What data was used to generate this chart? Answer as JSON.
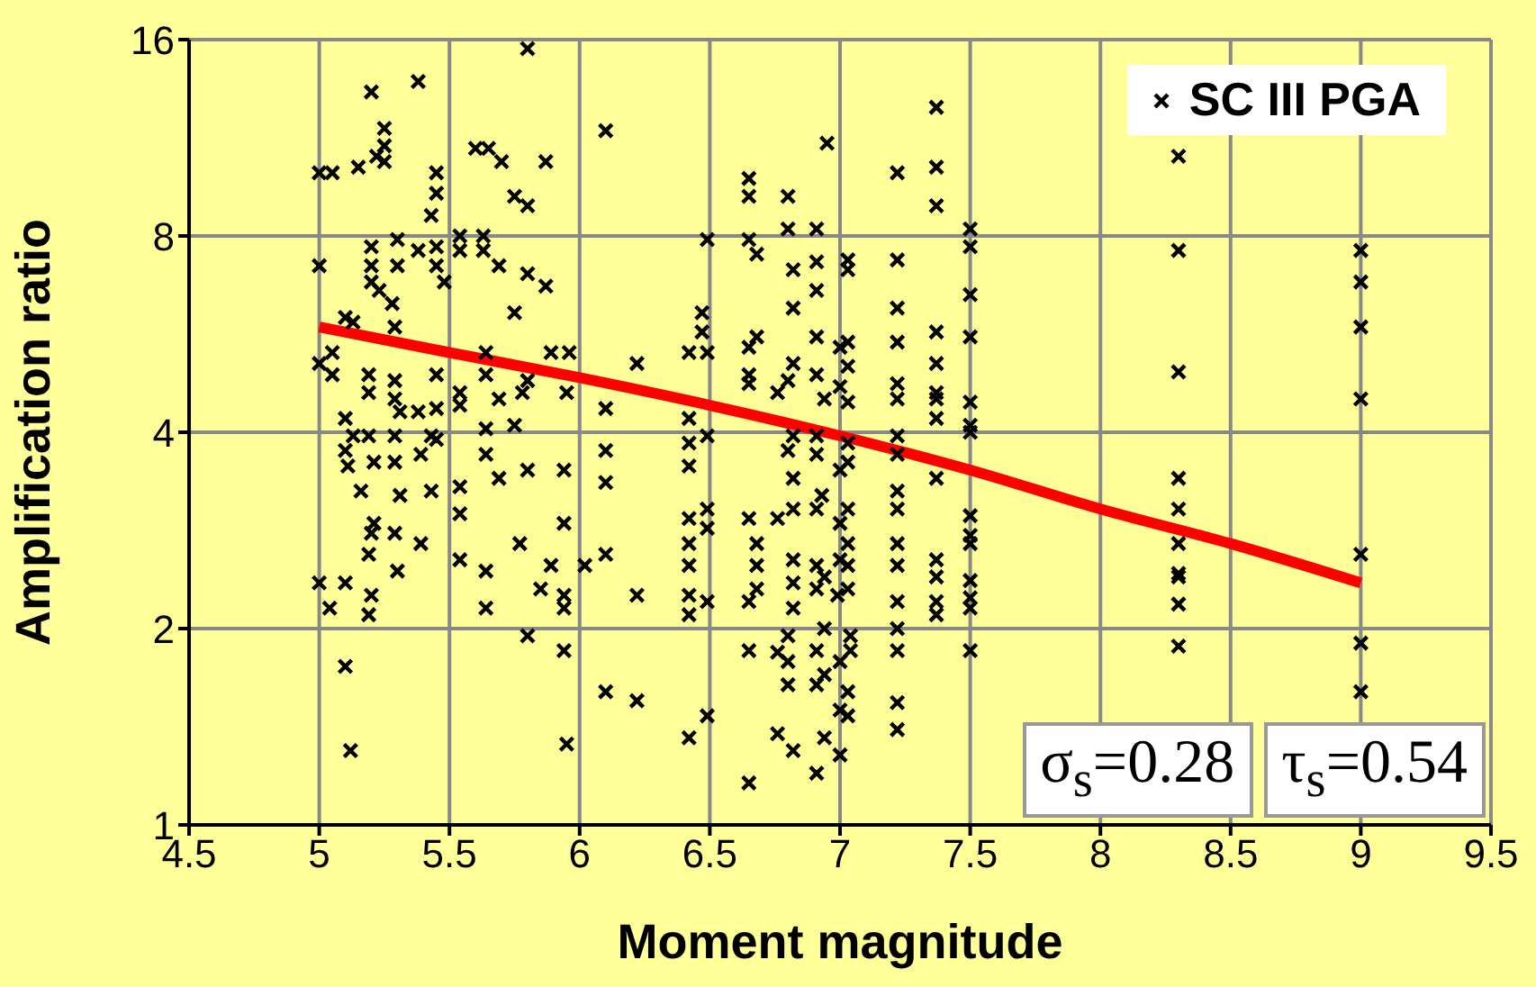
{
  "chart_data": {
    "type": "scatter",
    "xlabel": "Moment magnitude",
    "ylabel": "Amplification ratio",
    "xlim": [
      4.5,
      9.5
    ],
    "xticks": [
      4.5,
      5,
      5.5,
      6,
      6.5,
      7,
      7.5,
      8,
      8.5,
      9,
      9.5
    ],
    "ylim": [
      1,
      16
    ],
    "yticks": [
      1,
      2,
      4,
      8,
      16
    ],
    "log": "y",
    "grid": true,
    "legend": "top right",
    "annotations": [
      "σ$_{s}$=0.28",
      "τ$_{s}$=0.54"
    ],
    "series": [
      {
        "name": "SC III PGA",
        "marker": "cross",
        "color": "#000000",
        "x": [
          5.0,
          5.05,
          5.2,
          5.38,
          5.8,
          6.1,
          5.15,
          5.22,
          5.25,
          5.25,
          5.25,
          5.6,
          5.65,
          5.7,
          5.75,
          5.8,
          5.87,
          5.45,
          5.45,
          5.43,
          5.0,
          5.2,
          5.2,
          5.2,
          5.23,
          5.3,
          5.3,
          5.38,
          5.45,
          5.45,
          5.48,
          5.54,
          5.54,
          5.63,
          5.63,
          5.69,
          5.8,
          5.87,
          5.75,
          5.1,
          5.13,
          5.28,
          5.29,
          5,
          5.05,
          5.05,
          5.19,
          5.19,
          5.1,
          5.29,
          5.29,
          5.31,
          5.38,
          5.45,
          5.45,
          5.54,
          5.54,
          5.64,
          5.64,
          5.69,
          5.75,
          5.78,
          5.8,
          5.89,
          5.96,
          5.95,
          6.1,
          6.22,
          5.1,
          5.13,
          5.19,
          5.21,
          5.11,
          5.16,
          5.29,
          5.29,
          5.31,
          5.39,
          5.43,
          5.45,
          5.43,
          5.54,
          5.54,
          5.64,
          5.64,
          5.69,
          5.8,
          5.94,
          6.1,
          6.1,
          5.21,
          5.2,
          5.19,
          5.29,
          5.39,
          5.3,
          5.54,
          5.64,
          5.64,
          5.77,
          5.89,
          6.02,
          5.94,
          6.1,
          5,
          5.1,
          5.04,
          5.2,
          5.19,
          5.85,
          5.94,
          5.94,
          6.22,
          5.8,
          5.94,
          6.1,
          6.22,
          5.1,
          5.12,
          5.95,
          6.49,
          6.47,
          6.47,
          6.42,
          6.49,
          6.42,
          6.49,
          6.42,
          6.42,
          6.49,
          6.49,
          6.42,
          6.42,
          6.42,
          6.42,
          6.42,
          6.49,
          6.42,
          6.49,
          6.65,
          6.65,
          6.65,
          6.68,
          6.65,
          6.68,
          6.65,
          6.65,
          6.65,
          6.68,
          6.68,
          6.68,
          6.65,
          6.65,
          6.65,
          6.8,
          6.8,
          6.82,
          6.82,
          6.82,
          6.8,
          6.76,
          6.82,
          6.8,
          6.82,
          6.82,
          6.76,
          6.82,
          6.82,
          6.82,
          6.8,
          6.8,
          6.8,
          6.76,
          6.76,
          6.82,
          6.95,
          6.91,
          6.91,
          6.91,
          6.91,
          6.91,
          6.94,
          6.91,
          6.91,
          6.93,
          6.91,
          6.91,
          6.91,
          6.94,
          6.94,
          6.91,
          6.91,
          6.94,
          6.94,
          6.91,
          7.03,
          7.03,
          7,
          7.03,
          7.03,
          7,
          7.03,
          7.03,
          7.03,
          7,
          7.03,
          7,
          7.03,
          7.03,
          7,
          7.03,
          6.99,
          7.04,
          7.04,
          7,
          7.03,
          7.03,
          7,
          7,
          7.22,
          7.22,
          7.22,
          7.22,
          7.22,
          7.22,
          7.22,
          7.22,
          7.22,
          7.22,
          7.22,
          7.22,
          7.22,
          7.22,
          7.22,
          7.22,
          7.22,
          7.37,
          7.37,
          7.37,
          7.37,
          7.37,
          7.37,
          7.37,
          7.37,
          7.37,
          7.37,
          7.37,
          7.37,
          7.37,
          7.5,
          7.5,
          7.5,
          7.5,
          7.5,
          7.5,
          7.5,
          7.5,
          7.5,
          7.5,
          7.5,
          7.5,
          7.5,
          7.5,
          8.3,
          8.3,
          8.3,
          8.3,
          8.3,
          8.3,
          8.3,
          8.3,
          8.3,
          8.3,
          9,
          9,
          9,
          9,
          9,
          9,
          9
        ],
        "values": [
          10,
          10,
          13.3,
          13.8,
          15.5,
          11.6,
          10.2,
          10.6,
          11.7,
          11,
          10.4,
          10.9,
          10.9,
          10.4,
          9.2,
          8.9,
          10.4,
          10,
          9.3,
          8.6,
          7.2,
          7.7,
          7.2,
          6.8,
          6.6,
          7.9,
          7.2,
          7.6,
          7.7,
          7.2,
          6.8,
          8,
          7.6,
          8,
          7.6,
          7.2,
          7,
          6.7,
          6.1,
          6,
          5.9,
          6.3,
          5.8,
          5.1,
          5.3,
          4.9,
          4.9,
          4.6,
          4.2,
          4.8,
          4.5,
          4.3,
          4.3,
          4.9,
          4.35,
          4.6,
          4.4,
          5.3,
          4.9,
          4.5,
          4.1,
          4.6,
          4.8,
          5.3,
          5.3,
          4.6,
          4.35,
          5.1,
          3.75,
          3.95,
          3.95,
          3.6,
          3.55,
          3.25,
          3.95,
          3.6,
          3.2,
          3.7,
          3.95,
          3.9,
          3.25,
          3.3,
          3,
          4.05,
          3.7,
          3.4,
          3.5,
          3.5,
          3.75,
          3.35,
          2.9,
          2.8,
          2.6,
          2.8,
          2.7,
          2.45,
          2.55,
          2.45,
          2.15,
          2.7,
          2.5,
          2.5,
          2.9,
          2.6,
          2.35,
          2.35,
          2.15,
          2.25,
          2.1,
          2.3,
          2.25,
          2.15,
          2.25,
          1.95,
          1.85,
          1.6,
          1.55,
          1.75,
          1.3,
          1.33,
          7.9,
          6.1,
          5.7,
          5.3,
          5.3,
          4.2,
          3.95,
          3.85,
          3.55,
          3.05,
          2.85,
          2.95,
          2.7,
          2.5,
          2.25,
          2.1,
          2.2,
          1.36,
          1.47,
          9.8,
          9.2,
          7.9,
          7.5,
          5.4,
          5.6,
          4.9,
          4.75,
          2.95,
          2.7,
          2.5,
          2.3,
          2.2,
          1.85,
          1.16,
          9.2,
          8.2,
          7.1,
          6.2,
          5.1,
          4.8,
          4.6,
          3.95,
          3.75,
          3.4,
          3.05,
          2.95,
          2.55,
          2.35,
          2.15,
          1.95,
          1.78,
          1.64,
          1.84,
          1.38,
          1.3,
          11.1,
          8.2,
          7.3,
          6.6,
          5.6,
          4.9,
          4.5,
          3.95,
          3.7,
          3.2,
          3.05,
          2.5,
          2.3,
          2.4,
          2,
          1.85,
          1.64,
          1.7,
          1.36,
          1.2,
          7.35,
          7.1,
          5.4,
          5.5,
          5.05,
          4.7,
          4.45,
          3.85,
          3.6,
          3.5,
          3.05,
          2.9,
          2.7,
          2.5,
          2.55,
          2.3,
          2.25,
          1.95,
          1.85,
          1.78,
          1.6,
          1.47,
          1.5,
          1.28,
          10,
          7.35,
          6.2,
          5.5,
          4.75,
          4.5,
          3.95,
          3.7,
          3.25,
          3.05,
          2.7,
          2.5,
          2.2,
          2,
          1.85,
          1.54,
          1.4,
          12.6,
          10.2,
          8.9,
          5.7,
          5.1,
          4.6,
          4.5,
          4.2,
          3.4,
          2.55,
          2.4,
          2.2,
          2.1,
          8.2,
          7.7,
          6.5,
          5.6,
          4.45,
          4.1,
          4,
          2.98,
          2.78,
          2.7,
          2.37,
          2.23,
          2.15,
          1.85,
          10.6,
          7.6,
          4.95,
          3.4,
          3.05,
          2.7,
          2.43,
          2.4,
          2.18,
          1.88,
          7.6,
          6.8,
          5.8,
          4.5,
          2.6,
          1.9,
          1.6
        ]
      },
      {
        "type": "line",
        "color": "#ff0000",
        "x": [
          5,
          5.5,
          6,
          6.5,
          7,
          7.5,
          8,
          8.5,
          9
        ],
        "values": [
          5.8,
          5.3,
          4.85,
          4.4,
          3.95,
          3.5,
          3.05,
          2.7,
          2.35
        ]
      }
    ]
  }
}
